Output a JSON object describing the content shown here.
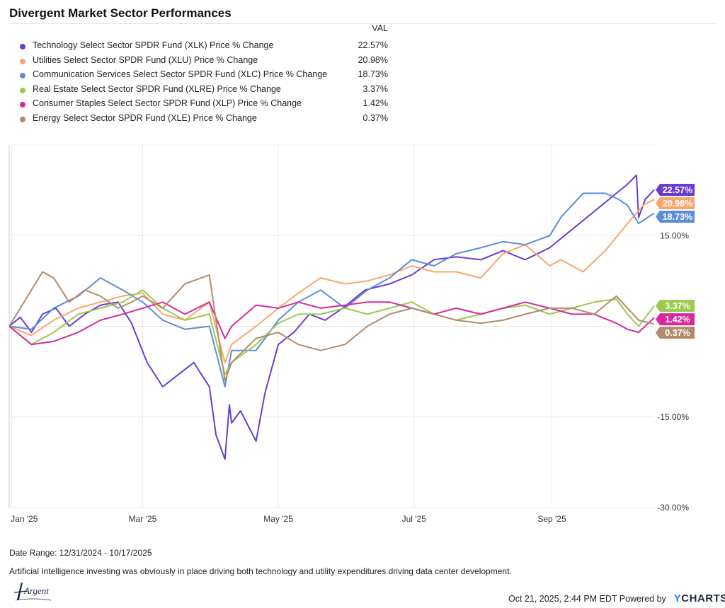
{
  "page": {
    "title": "Divergent Market Sector Performances",
    "date_range": "Date Range: 12/31/2024 - 10/17/2025",
    "note": "Artificial Intelligence investing was obviously in place driving both technology and utility expenditures driving data center development.",
    "timestamp": "Oct 21, 2025, 2:44 PM EDT Powered by",
    "brand": "YCHARTS",
    "logo_text": "Argent"
  },
  "legend": {
    "header": "VAL"
  },
  "chart_data": {
    "type": "line",
    "title": "Divergent Market Sector Performances",
    "xlabel": "",
    "ylabel": "",
    "ylim": [
      -30,
      30
    ],
    "xlim": [
      "2024-12-31",
      "2025-10-17"
    ],
    "yticks": [
      15,
      0,
      -15,
      -30
    ],
    "ytick_labels": [
      "15.00%",
      "",
      "-15.00%",
      "-30.00%"
    ],
    "xticks": [
      "2025-01-01",
      "2025-03-01",
      "2025-05-01",
      "2025-07-01",
      "2025-09-01"
    ],
    "xtick_labels": [
      "Jan '25",
      "Mar '25",
      "May '25",
      "Jul '25",
      "Sep '25"
    ],
    "grid": true,
    "legend_position": "top-left",
    "series": [
      {
        "name": "Technology Select Sector SPDR Fund (XLK) Price % Change",
        "value_label": "22.57%",
        "color": "#6a3ccf",
        "x": [
          "2024-12-31",
          "2025-01-05",
          "2025-01-10",
          "2025-01-15",
          "2025-01-21",
          "2025-01-27",
          "2025-02-03",
          "2025-02-10",
          "2025-02-18",
          "2025-02-24",
          "2025-03-03",
          "2025-03-10",
          "2025-03-17",
          "2025-03-24",
          "2025-03-31",
          "2025-04-03",
          "2025-04-07",
          "2025-04-09",
          "2025-04-10",
          "2025-04-14",
          "2025-04-21",
          "2025-04-25",
          "2025-05-01",
          "2025-05-08",
          "2025-05-15",
          "2025-05-22",
          "2025-05-30",
          "2025-06-09",
          "2025-06-20",
          "2025-06-30",
          "2025-07-10",
          "2025-07-20",
          "2025-07-31",
          "2025-08-10",
          "2025-08-20",
          "2025-08-31",
          "2025-09-10",
          "2025-09-20",
          "2025-09-30",
          "2025-10-05",
          "2025-10-09",
          "2025-10-10",
          "2025-10-13",
          "2025-10-17"
        ],
        "y": [
          0.0,
          1.5,
          -1.0,
          2.0,
          3.0,
          0.0,
          2.0,
          3.5,
          4.0,
          0.5,
          -6.0,
          -10.0,
          -8.0,
          -6.0,
          -10.0,
          -18.0,
          -22.0,
          -13.0,
          -16.0,
          -14.0,
          -19.0,
          -11.0,
          -3.0,
          -1.0,
          2.0,
          1.0,
          3.0,
          6.0,
          7.0,
          8.5,
          11.0,
          11.5,
          11.0,
          12.5,
          11.0,
          13.0,
          16.0,
          19.0,
          22.0,
          23.5,
          25.0,
          18.0,
          21.0,
          22.57
        ]
      },
      {
        "name": "Utilities Select Sector SPDR Fund (XLU) Price % Change",
        "value_label": "20.98%",
        "color": "#f7a76c",
        "x": [
          "2024-12-31",
          "2025-01-10",
          "2025-01-20",
          "2025-01-31",
          "2025-02-10",
          "2025-02-20",
          "2025-03-01",
          "2025-03-10",
          "2025-03-20",
          "2025-03-31",
          "2025-04-07",
          "2025-04-10",
          "2025-04-21",
          "2025-05-01",
          "2025-05-10",
          "2025-05-20",
          "2025-05-31",
          "2025-06-10",
          "2025-06-20",
          "2025-06-30",
          "2025-07-10",
          "2025-07-20",
          "2025-07-31",
          "2025-08-10",
          "2025-08-20",
          "2025-08-31",
          "2025-09-05",
          "2025-09-15",
          "2025-09-25",
          "2025-10-05",
          "2025-10-12",
          "2025-10-17"
        ],
        "y": [
          0.0,
          -1.5,
          1.0,
          3.0,
          4.0,
          5.0,
          5.5,
          2.0,
          1.0,
          4.0,
          -6.0,
          -3.0,
          0.0,
          3.0,
          5.5,
          8.0,
          7.0,
          7.5,
          8.5,
          10.0,
          9.0,
          9.0,
          8.0,
          12.0,
          13.5,
          10.0,
          11.0,
          9.0,
          12.5,
          17.0,
          20.0,
          20.98
        ]
      },
      {
        "name": "Communication Services Select Sector SPDR Fund (XLC) Price % Change",
        "value_label": "18.73%",
        "color": "#5b8ed9",
        "x": [
          "2024-12-31",
          "2025-01-10",
          "2025-01-20",
          "2025-01-31",
          "2025-02-10",
          "2025-02-20",
          "2025-03-01",
          "2025-03-10",
          "2025-03-20",
          "2025-03-31",
          "2025-04-07",
          "2025-04-10",
          "2025-04-21",
          "2025-05-01",
          "2025-05-10",
          "2025-05-20",
          "2025-05-31",
          "2025-06-10",
          "2025-06-20",
          "2025-06-30",
          "2025-07-10",
          "2025-07-20",
          "2025-07-31",
          "2025-08-10",
          "2025-08-20",
          "2025-08-31",
          "2025-09-05",
          "2025-09-15",
          "2025-09-25",
          "2025-10-01",
          "2025-10-05",
          "2025-10-10",
          "2025-10-17"
        ],
        "y": [
          0.0,
          -0.5,
          3.0,
          5.0,
          8.0,
          6.0,
          4.0,
          1.0,
          -0.5,
          0.0,
          -10.0,
          -4.0,
          -4.0,
          1.0,
          4.0,
          6.0,
          3.0,
          6.0,
          8.0,
          11.0,
          10.0,
          12.0,
          13.0,
          14.0,
          13.5,
          15.0,
          18.0,
          22.0,
          22.0,
          21.0,
          20.0,
          17.0,
          18.73
        ]
      },
      {
        "name": "Real Estate Select Sector SPDR Fund (XLRE) Price % Change",
        "value_label": "3.37%",
        "color": "#9cc94f",
        "x": [
          "2024-12-31",
          "2025-01-10",
          "2025-01-20",
          "2025-01-31",
          "2025-02-10",
          "2025-02-20",
          "2025-03-01",
          "2025-03-10",
          "2025-03-20",
          "2025-03-31",
          "2025-04-07",
          "2025-04-10",
          "2025-04-21",
          "2025-05-01",
          "2025-05-10",
          "2025-05-20",
          "2025-05-31",
          "2025-06-10",
          "2025-06-20",
          "2025-06-30",
          "2025-07-10",
          "2025-07-20",
          "2025-07-31",
          "2025-08-10",
          "2025-08-20",
          "2025-08-31",
          "2025-09-10",
          "2025-09-20",
          "2025-09-30",
          "2025-10-05",
          "2025-10-10",
          "2025-10-17"
        ],
        "y": [
          0.0,
          -3.0,
          -1.0,
          2.0,
          3.0,
          4.0,
          6.0,
          3.0,
          1.0,
          2.0,
          -8.0,
          -6.0,
          -3.0,
          0.5,
          2.0,
          2.0,
          3.0,
          2.0,
          3.0,
          4.0,
          2.0,
          1.0,
          2.0,
          3.0,
          3.5,
          2.0,
          3.0,
          4.0,
          4.5,
          2.0,
          0.0,
          3.37
        ]
      },
      {
        "name": "Consumer Staples Select Sector SPDR Fund (XLP) Price % Change",
        "value_label": "1.42%",
        "color": "#d72a9d",
        "x": [
          "2024-12-31",
          "2025-01-10",
          "2025-01-20",
          "2025-01-31",
          "2025-02-10",
          "2025-02-20",
          "2025-03-01",
          "2025-03-10",
          "2025-03-20",
          "2025-03-31",
          "2025-04-07",
          "2025-04-10",
          "2025-04-21",
          "2025-05-01",
          "2025-05-10",
          "2025-05-20",
          "2025-05-31",
          "2025-06-10",
          "2025-06-20",
          "2025-06-30",
          "2025-07-10",
          "2025-07-20",
          "2025-07-31",
          "2025-08-10",
          "2025-08-20",
          "2025-08-31",
          "2025-09-10",
          "2025-09-20",
          "2025-09-30",
          "2025-10-05",
          "2025-10-10",
          "2025-10-17"
        ],
        "y": [
          0.0,
          -3.0,
          -2.5,
          -1.0,
          1.0,
          2.0,
          3.0,
          4.0,
          2.0,
          4.0,
          -2.0,
          0.0,
          3.5,
          3.0,
          4.0,
          3.0,
          3.5,
          4.0,
          4.0,
          3.0,
          2.0,
          3.0,
          2.0,
          3.0,
          4.0,
          3.0,
          2.0,
          2.0,
          0.5,
          -0.5,
          -1.0,
          1.42
        ]
      },
      {
        "name": "Energy Select Sector SPDR Fund (XLE) Price % Change",
        "value_label": "0.37%",
        "color": "#b08c6d",
        "x": [
          "2024-12-31",
          "2025-01-05",
          "2025-01-10",
          "2025-01-15",
          "2025-01-20",
          "2025-01-27",
          "2025-02-03",
          "2025-02-10",
          "2025-02-18",
          "2025-02-24",
          "2025-03-01",
          "2025-03-10",
          "2025-03-20",
          "2025-03-31",
          "2025-04-07",
          "2025-04-10",
          "2025-04-21",
          "2025-05-01",
          "2025-05-10",
          "2025-05-20",
          "2025-05-31",
          "2025-06-10",
          "2025-06-20",
          "2025-06-30",
          "2025-07-10",
          "2025-07-20",
          "2025-07-31",
          "2025-08-10",
          "2025-08-20",
          "2025-08-31",
          "2025-09-10",
          "2025-09-20",
          "2025-09-30",
          "2025-10-05",
          "2025-10-10",
          "2025-10-17"
        ],
        "y": [
          0.0,
          3.0,
          6.0,
          9.0,
          8.0,
          4.0,
          6.0,
          5.0,
          3.0,
          4.0,
          5.0,
          3.0,
          7.0,
          8.5,
          -9.0,
          -6.0,
          -2.0,
          -1.0,
          -3.0,
          -4.0,
          -3.0,
          0.0,
          2.0,
          3.0,
          2.0,
          1.0,
          0.5,
          1.0,
          2.0,
          3.0,
          3.0,
          2.0,
          5.0,
          3.0,
          1.0,
          0.37
        ]
      }
    ]
  }
}
